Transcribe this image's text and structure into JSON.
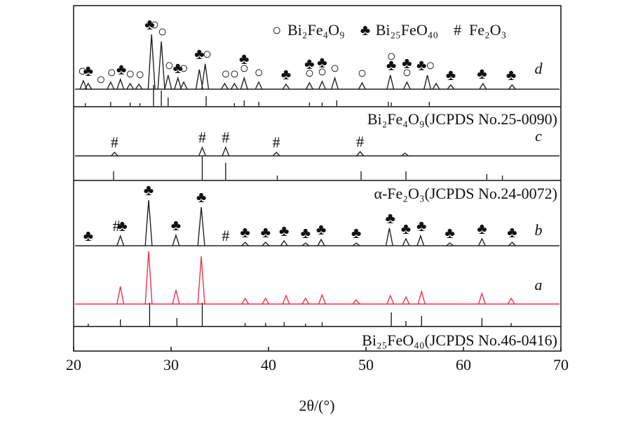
{
  "chart_data": {
    "type": "xrd",
    "xlabel": "2θ/(°)",
    "xlim": [
      20,
      70
    ],
    "xticks": [
      20,
      30,
      40,
      50,
      60,
      70
    ],
    "legend": [
      {
        "symbol": "○",
        "label": "Bi₂Fe₄O₉"
      },
      {
        "symbol": "♣",
        "label": "Bi₂₅FeO₄₀"
      },
      {
        "symbol": "#",
        "label": "Fe₂O₃"
      }
    ],
    "patterns": [
      {
        "name": "d",
        "color": "#222222",
        "positions": [
          21.0,
          21.5,
          23.8,
          24.8,
          25.8,
          26.7,
          28.0,
          29.0,
          29.7,
          30.7,
          31.3,
          32.9,
          33.5,
          35.5,
          36.5,
          37.5,
          39.0,
          41.8,
          44.2,
          45.5,
          46.8,
          49.6,
          52.5,
          54.2,
          56.3,
          57.2,
          58.7,
          62.0,
          65.0
        ],
        "intensities": [
          12,
          8,
          10,
          14,
          8,
          7,
          78,
          68,
          20,
          16,
          10,
          28,
          36,
          8,
          8,
          16,
          10,
          7,
          9,
          11,
          16,
          9,
          20,
          10,
          20,
          8,
          6,
          8,
          6
        ],
        "markers": [
          {
            "x": 20.9,
            "symbol": "○"
          },
          {
            "x": 21.5,
            "symbol": "♣"
          },
          {
            "x": 22.8,
            "symbol": "○"
          },
          {
            "x": 23.9,
            "symbol": "○"
          },
          {
            "x": 24.9,
            "symbol": "♣"
          },
          {
            "x": 25.8,
            "symbol": "○"
          },
          {
            "x": 26.8,
            "symbol": "○"
          },
          {
            "x": 27.8,
            "symbol": "♣"
          },
          {
            "x": 28.3,
            "symbol": "○"
          },
          {
            "x": 29.1,
            "symbol": "○"
          },
          {
            "x": 29.8,
            "symbol": "○"
          },
          {
            "x": 30.7,
            "symbol": "♣"
          },
          {
            "x": 31.3,
            "symbol": "○"
          },
          {
            "x": 32.9,
            "symbol": "♣"
          },
          {
            "x": 33.7,
            "symbol": "○"
          },
          {
            "x": 35.6,
            "symbol": "○"
          },
          {
            "x": 36.5,
            "symbol": "○"
          },
          {
            "x": 37.5,
            "symbol": "○"
          },
          {
            "x": 37.5,
            "symbol": "♣"
          },
          {
            "x": 39.0,
            "symbol": "○"
          },
          {
            "x": 41.8,
            "symbol": "♣"
          },
          {
            "x": 44.2,
            "symbol": "○"
          },
          {
            "x": 44.2,
            "symbol": "♣"
          },
          {
            "x": 45.5,
            "symbol": "○"
          },
          {
            "x": 45.5,
            "symbol": "♣"
          },
          {
            "x": 46.8,
            "symbol": "○"
          },
          {
            "x": 49.6,
            "symbol": "○"
          },
          {
            "x": 52.6,
            "symbol": "♣"
          },
          {
            "x": 52.6,
            "symbol": "○"
          },
          {
            "x": 54.2,
            "symbol": "○"
          },
          {
            "x": 54.2,
            "symbol": "♣"
          },
          {
            "x": 55.7,
            "symbol": "♣"
          },
          {
            "x": 56.6,
            "symbol": "○"
          },
          {
            "x": 58.7,
            "symbol": "♣"
          },
          {
            "x": 61.9,
            "symbol": "♣"
          },
          {
            "x": 64.9,
            "symbol": "♣"
          }
        ]
      },
      {
        "name": "c",
        "color": "#222222",
        "positions": [
          24.2,
          33.2,
          35.6,
          40.8,
          49.4,
          54.0
        ],
        "intensities": [
          5,
          12,
          12,
          5,
          6,
          4
        ],
        "markers": [
          {
            "x": 24.2,
            "symbol": "#"
          },
          {
            "x": 33.2,
            "symbol": "#"
          },
          {
            "x": 35.6,
            "symbol": "#"
          },
          {
            "x": 40.8,
            "symbol": "#"
          },
          {
            "x": 49.4,
            "symbol": "#"
          }
        ]
      },
      {
        "name": "b",
        "color": "#222222",
        "positions": [
          24.8,
          27.7,
          30.5,
          33.1,
          37.6,
          39.7,
          41.6,
          43.8,
          45.4,
          49.0,
          52.4,
          54.1,
          55.6,
          58.6,
          61.9,
          65.0
        ],
        "intensities": [
          14,
          65,
          15,
          55,
          5,
          5,
          7,
          4,
          9,
          4,
          25,
          10,
          14,
          4,
          10,
          5
        ],
        "markers": [
          {
            "x": 21.5,
            "symbol": "♣"
          },
          {
            "x": 24.4,
            "symbol": "#"
          },
          {
            "x": 25.0,
            "symbol": "♣"
          },
          {
            "x": 27.7,
            "symbol": "♣"
          },
          {
            "x": 30.5,
            "symbol": "♣"
          },
          {
            "x": 33.1,
            "symbol": "♣"
          },
          {
            "x": 35.6,
            "symbol": "#"
          },
          {
            "x": 37.6,
            "symbol": "♣"
          },
          {
            "x": 39.7,
            "symbol": "♣"
          },
          {
            "x": 41.6,
            "symbol": "♣"
          },
          {
            "x": 43.8,
            "symbol": "♣"
          },
          {
            "x": 45.4,
            "symbol": "♣"
          },
          {
            "x": 49.0,
            "symbol": "♣"
          },
          {
            "x": 52.5,
            "symbol": "♣"
          },
          {
            "x": 54.1,
            "symbol": "♣"
          },
          {
            "x": 55.7,
            "symbol": "♣"
          },
          {
            "x": 58.6,
            "symbol": "♣"
          },
          {
            "x": 61.9,
            "symbol": "♣"
          },
          {
            "x": 65.0,
            "symbol": "♣"
          }
        ]
      },
      {
        "name": "a",
        "color": "#e8344e",
        "positions": [
          24.8,
          27.7,
          30.5,
          33.1,
          37.6,
          39.7,
          41.8,
          43.8,
          45.5,
          49.0,
          52.5,
          54.1,
          55.7,
          61.9,
          64.9
        ],
        "intensities": [
          25,
          75,
          20,
          68,
          8,
          8,
          12,
          8,
          13,
          6,
          12,
          10,
          18,
          15,
          8
        ],
        "markers": []
      }
    ],
    "references": [
      {
        "label": "Bi₂Fe₄O₉(JCPDS No.25-0090)",
        "positions": [
          21.2,
          23.8,
          25.8,
          26.8,
          28.2,
          29.0,
          29.7,
          33.6,
          36.5,
          37.5,
          39.0,
          44.2,
          45.5,
          47.0,
          52.3,
          52.6,
          56.5
        ],
        "intensities": [
          4,
          6,
          5,
          4,
          30,
          22,
          12,
          14,
          4,
          8,
          6,
          5,
          5,
          8,
          6,
          5,
          6
        ]
      },
      {
        "label": "α-Fe₂O₃(JCPDS No.24-0072)",
        "positions": [
          24.1,
          33.2,
          35.6,
          40.9,
          49.5,
          54.1,
          62.4,
          64.0
        ],
        "intensities": [
          12,
          34,
          24,
          6,
          12,
          12,
          8,
          6
        ]
      },
      {
        "label": "Bi₂₅FeO₄₀(JCPDS No.46-0416)",
        "positions": [
          21.5,
          24.8,
          27.8,
          30.6,
          33.2,
          37.6,
          39.7,
          41.6,
          43.8,
          45.5,
          52.6,
          54.1,
          55.7,
          61.9,
          64.9
        ],
        "intensities": [
          4,
          10,
          34,
          12,
          34,
          5,
          5,
          6,
          4,
          6,
          20,
          8,
          15,
          12,
          5
        ]
      }
    ]
  }
}
